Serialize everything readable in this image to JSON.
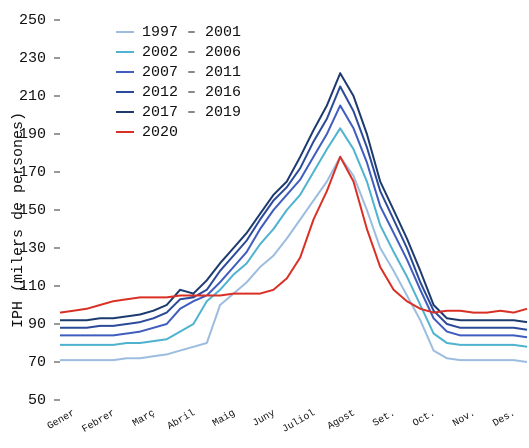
{
  "chart_data": {
    "type": "line",
    "y_label": "IPH (milers de persones)",
    "categories": [
      "Gener",
      null,
      null,
      "Febrer",
      null,
      null,
      "Març",
      null,
      null,
      "Abril",
      null,
      null,
      "Maig",
      null,
      null,
      "Juny",
      null,
      null,
      "Juliol",
      null,
      null,
      "Agost",
      null,
      null,
      "Set.",
      null,
      null,
      "Oct.",
      null,
      null,
      "Nov.",
      null,
      null,
      "Des.",
      null,
      null
    ],
    "ylim": [
      50,
      250
    ],
    "yticks": [
      50,
      70,
      90,
      110,
      130,
      150,
      170,
      190,
      210,
      230,
      250
    ],
    "grid": false,
    "series": [
      {
        "name": "1997 – 2001",
        "color": "#9dbde0",
        "values": [
          71,
          71,
          71,
          71,
          71,
          72,
          72,
          73,
          74,
          76,
          78,
          80,
          100,
          106,
          112,
          120,
          126,
          135,
          145,
          155,
          165,
          178,
          168,
          150,
          130,
          118,
          105,
          92,
          76,
          72,
          71,
          71,
          71,
          71,
          71,
          70
        ]
      },
      {
        "name": "2002 – 2006",
        "color": "#4fb3cf",
        "values": [
          79,
          79,
          79,
          79,
          79,
          80,
          80,
          81,
          82,
          86,
          90,
          102,
          108,
          116,
          122,
          132,
          140,
          150,
          158,
          170,
          182,
          193,
          182,
          165,
          142,
          128,
          115,
          100,
          85,
          80,
          79,
          79,
          79,
          79,
          79,
          78
        ]
      },
      {
        "name": "2007 – 2011",
        "color": "#3f5cbf",
        "values": [
          84,
          84,
          84,
          84,
          84,
          85,
          86,
          88,
          90,
          98,
          102,
          105,
          112,
          120,
          128,
          140,
          150,
          158,
          166,
          178,
          190,
          205,
          193,
          175,
          152,
          138,
          124,
          108,
          93,
          86,
          84,
          84,
          84,
          84,
          84,
          83
        ]
      },
      {
        "name": "2012 – 2016",
        "color": "#2b4a9a",
        "values": [
          88,
          88,
          88,
          89,
          89,
          90,
          91,
          93,
          96,
          103,
          104,
          108,
          118,
          126,
          134,
          145,
          155,
          162,
          172,
          186,
          198,
          215,
          202,
          183,
          160,
          145,
          130,
          112,
          97,
          90,
          88,
          88,
          88,
          88,
          88,
          87
        ]
      },
      {
        "name": "2017 – 2019",
        "color": "#1c3a6e",
        "values": [
          92,
          92,
          92,
          93,
          93,
          94,
          95,
          97,
          100,
          108,
          106,
          113,
          122,
          130,
          138,
          148,
          158,
          165,
          178,
          192,
          205,
          222,
          210,
          190,
          165,
          150,
          135,
          118,
          100,
          93,
          92,
          92,
          92,
          92,
          92,
          91
        ]
      },
      {
        "name": "2020",
        "color": "#d93025",
        "values": [
          96,
          97,
          98,
          100,
          102,
          103,
          104,
          104,
          104,
          105,
          105,
          105,
          105,
          106,
          106,
          106,
          108,
          114,
          125,
          145,
          160,
          178,
          165,
          140,
          120,
          108,
          102,
          98,
          96,
          97,
          97,
          96,
          96,
          97,
          96,
          98
        ]
      }
    ]
  }
}
